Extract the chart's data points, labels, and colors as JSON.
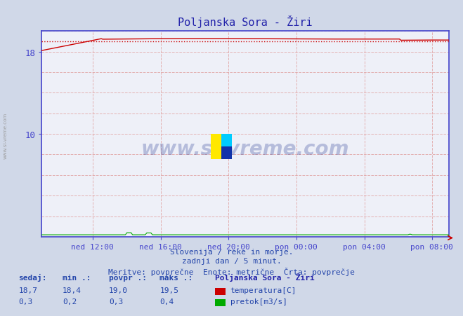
{
  "title": "Poljanska Sora - Žiri",
  "title_color": "#2222aa",
  "bg_color": "#d0d8e8",
  "plot_bg_color": "#eef0f8",
  "grid_color_red": "#e0a0a0",
  "axis_color": "#4444cc",
  "tick_color": "#4444cc",
  "x_labels": [
    "ned 12:00",
    "ned 16:00",
    "ned 20:00",
    "pon 00:00",
    "pon 04:00",
    "pon 08:00"
  ],
  "x_ticks": [
    0.125,
    0.292,
    0.458,
    0.625,
    0.792,
    0.958
  ],
  "y_ticks": [
    0,
    2,
    4,
    6,
    8,
    10,
    12,
    14,
    16,
    18,
    20
  ],
  "y_min": 0,
  "y_max": 20,
  "temp_avg": 19.0,
  "temp_color": "#cc0000",
  "flow_color": "#00aa00",
  "subtitle1": "Slovenija / reke in morje.",
  "subtitle2": "zadnji dan / 5 minut.",
  "subtitle3": "Meritve: povprečne  Enote: metrične  Črta: povprečje",
  "text_color": "#2244aa",
  "watermark": "www.si-vreme.com",
  "n_points": 288,
  "headers": [
    "sedaj:",
    "min .:",
    "povpr .:",
    "maks .:"
  ],
  "station_name": "Poljanska Sora - Žiri",
  "temp_vals": [
    "18,7",
    "18,4",
    "19,0",
    "19,5"
  ],
  "flow_vals": [
    "0,3",
    "0,2",
    "0,3",
    "0,4"
  ],
  "temp_label": "temperatura[C]",
  "flow_label": "pretok[m3/s]"
}
